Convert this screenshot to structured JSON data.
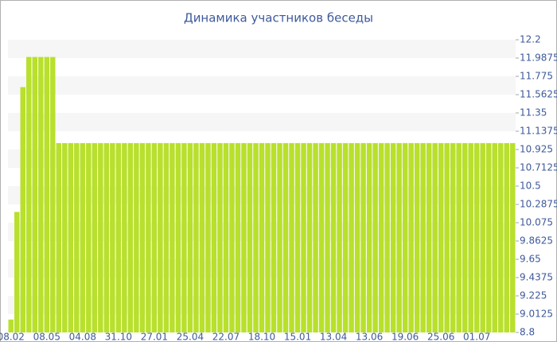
{
  "chart_data": {
    "type": "bar",
    "title": "Динамика участников беседы",
    "categories": [
      "08.02",
      null,
      null,
      null,
      null,
      null,
      "08.05",
      null,
      null,
      null,
      null,
      null,
      "04.08",
      null,
      null,
      null,
      null,
      null,
      "31.10",
      null,
      null,
      null,
      null,
      null,
      "27.01",
      null,
      null,
      null,
      null,
      null,
      "25.04",
      null,
      null,
      null,
      null,
      null,
      "22.07",
      null,
      null,
      null,
      null,
      null,
      "18.10",
      null,
      null,
      null,
      null,
      null,
      "15.01",
      null,
      null,
      null,
      null,
      null,
      "13.04",
      null,
      null,
      null,
      null,
      null,
      "13.06",
      null,
      null,
      null,
      null,
      null,
      "19.06",
      null,
      null,
      null,
      null,
      null,
      "25.06",
      null,
      null,
      null,
      null,
      null,
      "01.07",
      null,
      null,
      null,
      null,
      null,
      null
    ],
    "values": [
      8.95,
      10.2,
      11.65,
      12,
      12,
      12,
      12,
      12,
      11,
      11,
      11,
      11,
      11,
      11,
      11,
      11,
      11,
      11,
      11,
      11,
      11,
      11,
      11,
      11,
      11,
      11,
      11,
      11,
      11,
      11,
      11,
      11,
      11,
      11,
      11,
      11,
      11,
      11,
      11,
      11,
      11,
      11,
      11,
      11,
      11,
      11,
      11,
      11,
      11,
      11,
      11,
      11,
      11,
      11,
      11,
      11,
      11,
      11,
      11,
      11,
      11,
      11,
      11,
      11,
      11,
      11,
      11,
      11,
      11,
      11,
      11,
      11,
      11,
      11,
      11,
      11,
      11,
      11,
      11,
      11,
      11,
      11,
      11,
      11,
      11
    ],
    "color": "#b8e02c",
    "ylim": [
      8.8,
      12.2
    ],
    "yticks": [
      8.8,
      9.0125,
      9.225,
      9.4375,
      9.65,
      9.8625,
      10.075,
      10.2875,
      10.5,
      10.7125,
      10.925,
      11.1375,
      11.35,
      11.5625,
      11.775,
      11.9875,
      12.2
    ],
    "grid": true
  }
}
